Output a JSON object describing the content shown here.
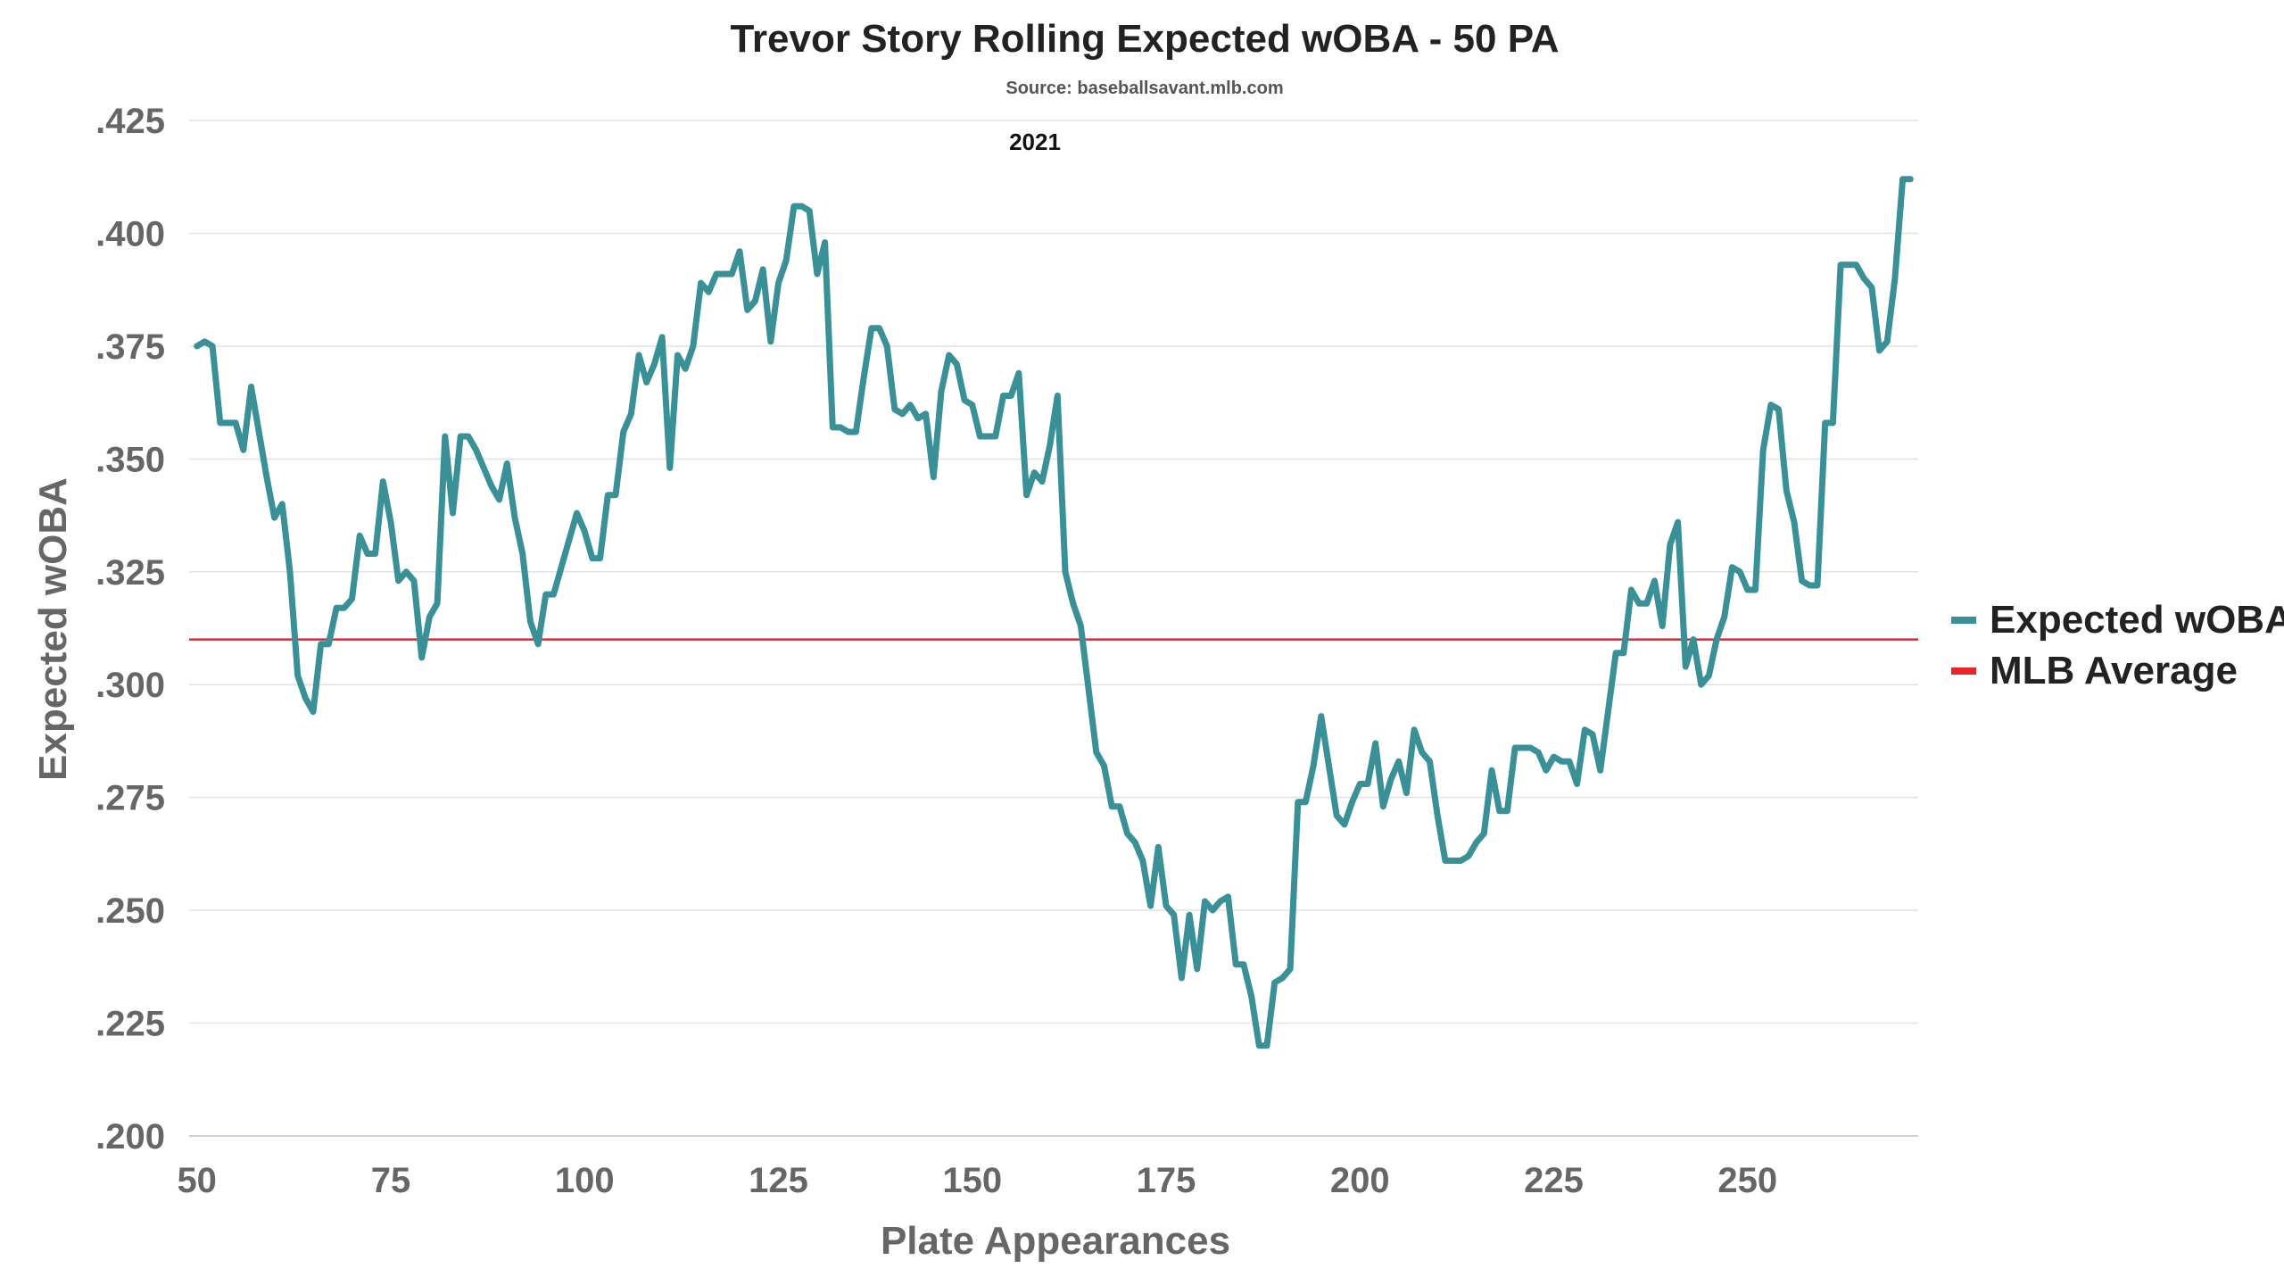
{
  "chart_data": {
    "type": "line",
    "title": "Trevor Story Rolling Expected wOBA - 50 PA",
    "subtitle": "Source: baseballsavant.mlb.com",
    "annotation": "2021",
    "xlabel": "Plate Appearances",
    "ylabel": "Expected wOBA",
    "xlim": [
      49,
      272
    ],
    "ylim": [
      0.2,
      0.425
    ],
    "x_ticks": [
      50,
      75,
      100,
      125,
      150,
      175,
      200,
      225,
      250
    ],
    "y_ticks": [
      0.2,
      0.225,
      0.25,
      0.275,
      0.3,
      0.325,
      0.35,
      0.375,
      0.4,
      0.425
    ],
    "y_tick_labels": [
      ".200",
      ".225",
      ".250",
      ".275",
      ".300",
      ".325",
      ".350",
      ".375",
      ".400",
      ".425"
    ],
    "grid": true,
    "legend_position": "right",
    "reference_line": {
      "name": "MLB Average",
      "value": 0.31,
      "color": "#e8262b"
    },
    "series": [
      {
        "name": "Expected wOBA",
        "color": "#3a9097",
        "x": [
          50,
          51,
          52,
          53,
          54,
          55,
          56,
          57,
          58,
          59,
          60,
          61,
          62,
          63,
          64,
          65,
          66,
          67,
          68,
          69,
          70,
          71,
          72,
          73,
          74,
          75,
          76,
          77,
          78,
          79,
          80,
          81,
          82,
          83,
          84,
          85,
          86,
          87,
          88,
          89,
          90,
          91,
          92,
          93,
          94,
          95,
          96,
          97,
          98,
          99,
          100,
          101,
          102,
          103,
          104,
          105,
          106,
          107,
          108,
          109,
          110,
          111,
          112,
          113,
          114,
          115,
          116,
          117,
          118,
          119,
          120,
          121,
          122,
          123,
          124,
          125,
          126,
          127,
          128,
          129,
          130,
          131,
          132,
          133,
          134,
          135,
          136,
          137,
          138,
          139,
          140,
          141,
          142,
          143,
          144,
          145,
          146,
          147,
          148,
          149,
          150,
          151,
          152,
          153,
          154,
          155,
          156,
          157,
          158,
          159,
          160,
          161,
          162,
          163,
          164,
          165,
          166,
          167,
          168,
          169,
          170,
          171,
          172,
          173,
          174,
          175,
          176,
          177,
          178,
          179,
          180,
          181,
          182,
          183,
          184,
          185,
          186,
          187,
          188,
          189,
          190,
          191,
          192,
          193,
          194,
          195,
          196,
          197,
          198,
          199,
          200,
          201,
          202,
          203,
          204,
          205,
          206,
          207,
          208,
          209,
          210,
          211,
          212,
          213,
          214,
          215,
          216,
          217,
          218,
          219,
          220,
          221,
          222,
          223,
          224,
          225,
          226,
          227,
          228,
          229,
          230,
          231,
          232,
          233,
          234,
          235,
          236,
          237,
          238,
          239,
          240,
          241,
          242,
          243,
          244,
          245,
          246,
          247,
          248,
          249,
          250,
          251,
          252,
          253,
          254,
          255,
          256,
          257,
          258,
          259,
          260,
          261,
          262,
          263,
          264,
          265,
          266,
          267,
          268,
          269,
          270,
          271
        ],
        "values": [
          0.375,
          0.376,
          0.375,
          0.358,
          0.358,
          0.358,
          0.352,
          0.366,
          0.356,
          0.346,
          0.337,
          0.34,
          0.325,
          0.302,
          0.297,
          0.294,
          0.309,
          0.309,
          0.317,
          0.317,
          0.319,
          0.333,
          0.329,
          0.329,
          0.345,
          0.336,
          0.323,
          0.325,
          0.323,
          0.306,
          0.315,
          0.318,
          0.355,
          0.338,
          0.355,
          0.355,
          0.352,
          0.348,
          0.344,
          0.341,
          0.349,
          0.337,
          0.329,
          0.314,
          0.309,
          0.32,
          0.32,
          0.326,
          0.332,
          0.338,
          0.334,
          0.328,
          0.328,
          0.342,
          0.342,
          0.356,
          0.36,
          0.373,
          0.367,
          0.371,
          0.377,
          0.348,
          0.373,
          0.37,
          0.375,
          0.389,
          0.387,
          0.391,
          0.391,
          0.391,
          0.396,
          0.383,
          0.385,
          0.392,
          0.376,
          0.389,
          0.394,
          0.406,
          0.406,
          0.405,
          0.391,
          0.398,
          0.357,
          0.357,
          0.356,
          0.356,
          0.368,
          0.379,
          0.379,
          0.375,
          0.361,
          0.36,
          0.362,
          0.359,
          0.36,
          0.346,
          0.365,
          0.373,
          0.371,
          0.363,
          0.362,
          0.355,
          0.355,
          0.355,
          0.364,
          0.364,
          0.369,
          0.342,
          0.347,
          0.345,
          0.353,
          0.364,
          0.325,
          0.318,
          0.313,
          0.299,
          0.285,
          0.282,
          0.273,
          0.273,
          0.267,
          0.265,
          0.261,
          0.251,
          0.264,
          0.251,
          0.249,
          0.235,
          0.249,
          0.237,
          0.252,
          0.25,
          0.252,
          0.253,
          0.238,
          0.238,
          0.231,
          0.22,
          0.22,
          0.234,
          0.235,
          0.237,
          0.274,
          0.274,
          0.282,
          0.293,
          0.282,
          0.271,
          0.269,
          0.274,
          0.278,
          0.278,
          0.287,
          0.273,
          0.279,
          0.283,
          0.276,
          0.29,
          0.285,
          0.283,
          0.271,
          0.261,
          0.261,
          0.261,
          0.262,
          0.265,
          0.267,
          0.281,
          0.272,
          0.272,
          0.286,
          0.286,
          0.286,
          0.285,
          0.281,
          0.284,
          0.283,
          0.283,
          0.278,
          0.29,
          0.289,
          0.281,
          0.294,
          0.307,
          0.307,
          0.321,
          0.318,
          0.318,
          0.323,
          0.313,
          0.331,
          0.336,
          0.304,
          0.31,
          0.3,
          0.302,
          0.31,
          0.315,
          0.326,
          0.325,
          0.321,
          0.321,
          0.352,
          0.362,
          0.361,
          0.343,
          0.336,
          0.323,
          0.322,
          0.322,
          0.358,
          0.358,
          0.393,
          0.393,
          0.393,
          0.39,
          0.388,
          0.374,
          0.376,
          0.39,
          0.412,
          0.412
        ]
      }
    ]
  }
}
